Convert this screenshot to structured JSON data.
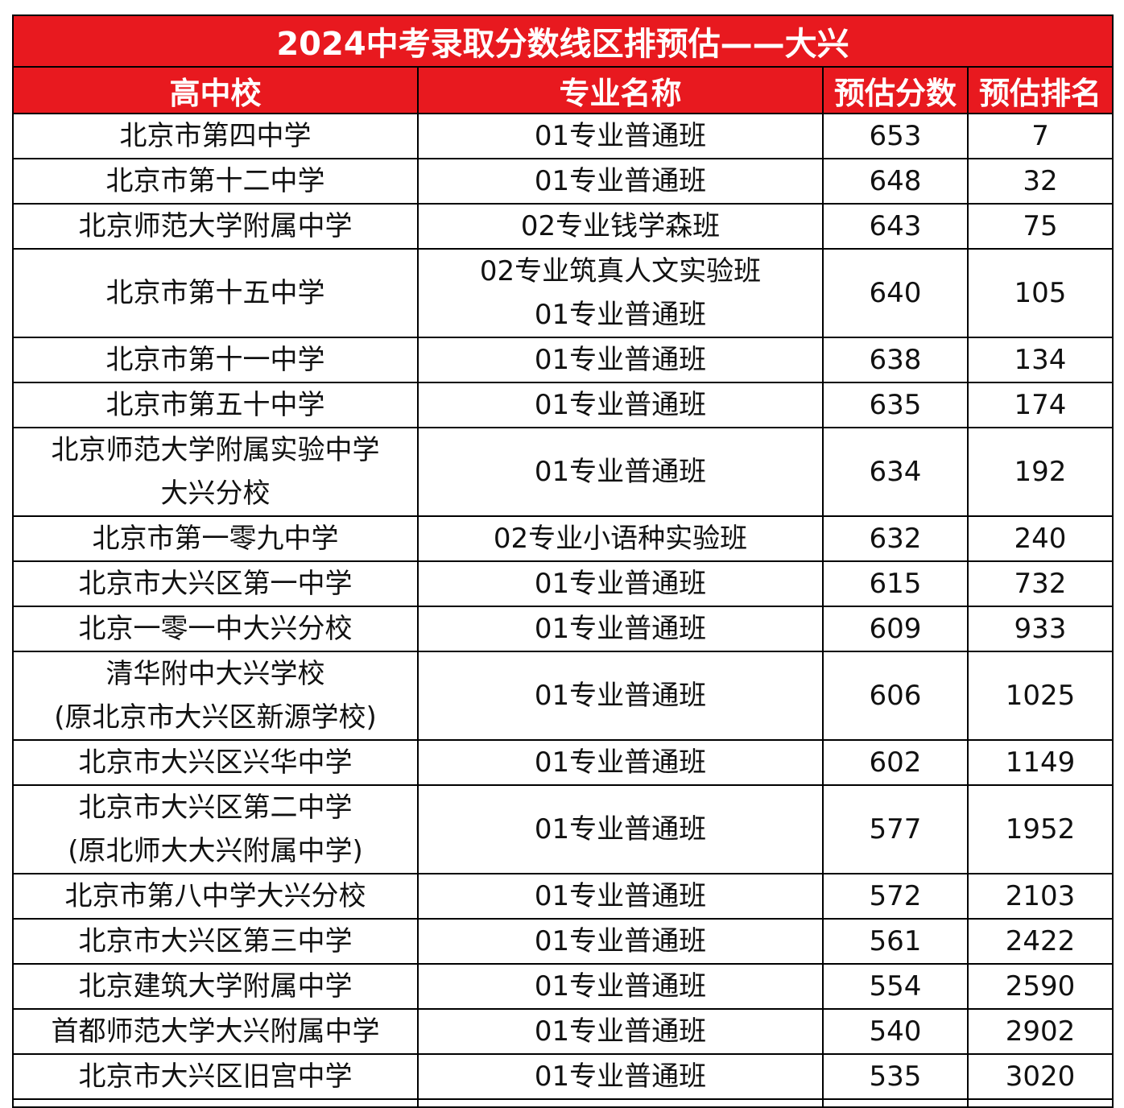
{
  "title": "2024中考录取分数线区排预估——大兴",
  "headers": {
    "school": "高中校",
    "major": "专业名称",
    "score": "预估分数",
    "rank": "预估排名"
  },
  "rows": [
    {
      "school": [
        "北京市第四中学"
      ],
      "major": [
        "01专业普通班"
      ],
      "score": "653",
      "rank": "7"
    },
    {
      "school": [
        "北京市第十二中学"
      ],
      "major": [
        "01专业普通班"
      ],
      "score": "648",
      "rank": "32"
    },
    {
      "school": [
        "北京师范大学附属中学"
      ],
      "major": [
        "02专业钱学森班"
      ],
      "score": "643",
      "rank": "75"
    },
    {
      "school": [
        "北京市第十五中学"
      ],
      "major": [
        "02专业筑真人文实验班",
        "01专业普通班"
      ],
      "score": "640",
      "rank": "105"
    },
    {
      "school": [
        "北京市第十一中学"
      ],
      "major": [
        "01专业普通班"
      ],
      "score": "638",
      "rank": "134"
    },
    {
      "school": [
        "北京市第五十中学"
      ],
      "major": [
        "01专业普通班"
      ],
      "score": "635",
      "rank": "174"
    },
    {
      "school": [
        "北京师范大学附属实验中学",
        "大兴分校"
      ],
      "major": [
        "01专业普通班"
      ],
      "score": "634",
      "rank": "192"
    },
    {
      "school": [
        "北京市第一零九中学"
      ],
      "major": [
        "02专业小语种实验班"
      ],
      "score": "632",
      "rank": "240"
    },
    {
      "school": [
        "北京市大兴区第一中学"
      ],
      "major": [
        "01专业普通班"
      ],
      "score": "615",
      "rank": "732"
    },
    {
      "school": [
        "北京一零一中大兴分校"
      ],
      "major": [
        "01专业普通班"
      ],
      "score": "609",
      "rank": "933"
    },
    {
      "school": [
        "清华附中大兴学校",
        "(原北京市大兴区新源学校)"
      ],
      "major": [
        "01专业普通班"
      ],
      "score": "606",
      "rank": "1025"
    },
    {
      "school": [
        "北京市大兴区兴华中学"
      ],
      "major": [
        "01专业普通班"
      ],
      "score": "602",
      "rank": "1149"
    },
    {
      "school": [
        "北京市大兴区第二中学",
        "(原北师大大兴附属中学)"
      ],
      "major": [
        "01专业普通班"
      ],
      "score": "577",
      "rank": "1952"
    },
    {
      "school": [
        "北京市第八中学大兴分校"
      ],
      "major": [
        "01专业普通班"
      ],
      "score": "572",
      "rank": "2103"
    },
    {
      "school": [
        "北京市大兴区第三中学"
      ],
      "major": [
        "01专业普通班"
      ],
      "score": "561",
      "rank": "2422"
    },
    {
      "school": [
        "北京建筑大学附属中学"
      ],
      "major": [
        "01专业普通班"
      ],
      "score": "554",
      "rank": "2590"
    },
    {
      "school": [
        "首都师范大学大兴附属中学"
      ],
      "major": [
        "01专业普通班"
      ],
      "score": "540",
      "rank": "2902"
    },
    {
      "school": [
        "北京市大兴区旧宫中学"
      ],
      "major": [
        "01专业普通班"
      ],
      "score": "535",
      "rank": "3020"
    }
  ],
  "colors": {
    "header_bg": "#e8191f",
    "header_text": "#ffffff",
    "border": "#000000"
  }
}
